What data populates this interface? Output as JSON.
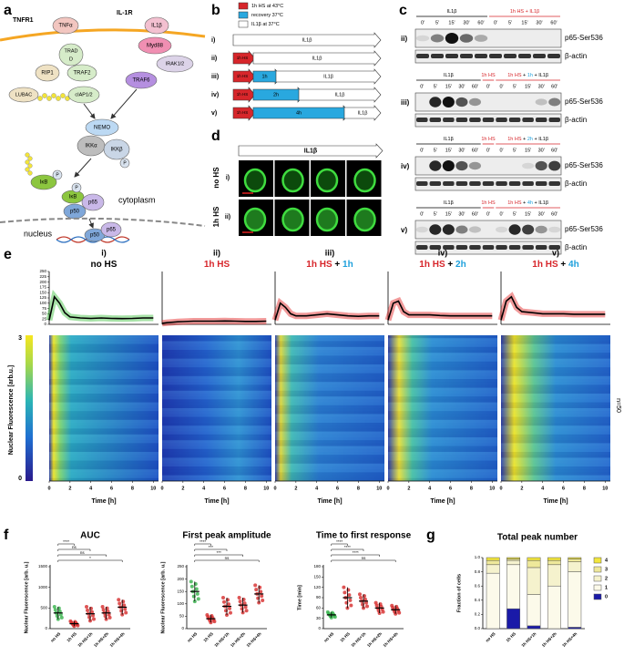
{
  "panel_a": {
    "letter": "a",
    "tnfr1": "TNFR1",
    "il1r": "IL-1R",
    "tnfa": "TNFα",
    "tradd": [
      "TRAD",
      "D"
    ],
    "rip1": "RIP1",
    "traf2": "TRAF2",
    "lubac": "LUBAC",
    "ciap": "cIAP1/2",
    "il1b": "IL1β",
    "myd88": "Myd88",
    "irak": "IRAK1/2",
    "traf6": "TRAF6",
    "nemo": "NEMO",
    "ikka": "IKKα",
    "ikkb": "IKKβ",
    "p": "P",
    "ikb": "IκB",
    "p65": "p65",
    "p50": "p50",
    "cytoplasm": "cytoplasm",
    "nucleus": "nucleus"
  },
  "panel_b": {
    "letter": "b",
    "legend": [
      {
        "text": "1h HS at 43°C",
        "color": "#d7262b"
      },
      {
        "text": "recovery 37°C",
        "color": "#29a8df"
      },
      {
        "text": "IL1β at 37°C",
        "color": "#ffffff"
      }
    ],
    "rows": [
      {
        "label": "i)",
        "steps": [
          "IL1β"
        ]
      },
      {
        "label": "ii)",
        "steps": [
          "1h HS",
          "IL1β"
        ]
      },
      {
        "label": "iii)",
        "steps": [
          "1h HS",
          "1h",
          "IL1β"
        ]
      },
      {
        "label": "iv)",
        "steps": [
          "1h HS",
          "2h",
          "IL1β"
        ]
      },
      {
        "label": "v)",
        "steps": [
          "1h HS",
          "4h",
          "IL1β"
        ]
      }
    ]
  },
  "panel_c": {
    "letter": "c",
    "protein": "p65-Ser536",
    "loading": "β-actin",
    "blots": [
      {
        "label": "ii)",
        "header": [
          [
            {
              "text": "IL1β"
            }
          ],
          [
            {
              "text": "1h HS + IL1β",
              "color": "#d7262b"
            }
          ]
        ],
        "times": [
          "0'",
          "5'",
          "15'",
          "30'",
          "60'",
          "0'",
          "5'",
          "15'",
          "30'",
          "60'"
        ],
        "p65_band": [
          0.1,
          0.5,
          1,
          0.6,
          0.3,
          0,
          0,
          0,
          0,
          0
        ]
      },
      {
        "label": "iii)",
        "header": [
          [
            {
              "text": "IL1β"
            }
          ],
          [
            {
              "text": "1h HS",
              "color": "#d7262b"
            }
          ],
          [
            {
              "text": "1h HS",
              "color": "#d7262b"
            },
            {
              "text": " + "
            },
            {
              "text": "1h",
              "color": "#1ea0dc"
            },
            {
              "text": " + IL1β"
            }
          ]
        ],
        "times": [
          "0'",
          "5'",
          "15'",
          "30'",
          "60'",
          "0'",
          "0'",
          "5'",
          "15'",
          "30'",
          "60'"
        ],
        "p65_band": [
          0,
          0.9,
          1,
          0.7,
          0.4,
          0,
          0,
          0,
          0,
          0.2,
          0.5
        ]
      },
      {
        "label": "iv)",
        "header": [
          [
            {
              "text": "IL1β"
            }
          ],
          [
            {
              "text": "1h HS",
              "color": "#d7262b"
            }
          ],
          [
            {
              "text": "1h HS",
              "color": "#d7262b"
            },
            {
              "text": " + "
            },
            {
              "text": "2h",
              "color": "#1ea0dc"
            },
            {
              "text": " + IL1β"
            }
          ]
        ],
        "times": [
          "0'",
          "5'",
          "15'",
          "30'",
          "60'",
          "0'",
          "0'",
          "5'",
          "15'",
          "30'",
          "60'"
        ],
        "p65_band": [
          0,
          0.9,
          1,
          0.7,
          0.4,
          0,
          0,
          0,
          0.1,
          0.7,
          0.8
        ]
      },
      {
        "label": "v)",
        "header": [
          [
            {
              "text": "IL1β"
            }
          ],
          [
            {
              "text": "1h HS",
              "color": "#d7262b"
            }
          ],
          [
            {
              "text": "1h HS",
              "color": "#d7262b"
            },
            {
              "text": " + "
            },
            {
              "text": "4h",
              "color": "#1ea0dc"
            },
            {
              "text": " + IL1β"
            }
          ]
        ],
        "times": [
          "0'",
          "5'",
          "15'",
          "30'",
          "60'",
          "0'",
          "0'",
          "5'",
          "15'",
          "30'",
          "60'"
        ],
        "p65_band": [
          0.1,
          0.9,
          0.9,
          0.5,
          0.2,
          0,
          0.1,
          0.9,
          0.8,
          0.4,
          0.1
        ]
      }
    ]
  },
  "panel_d": {
    "letter": "d",
    "stimulus": "IL1β",
    "rows": [
      {
        "label": "i)",
        "condition": "no HS",
        "color": "#000000"
      },
      {
        "label": "ii)",
        "condition": "1h HS",
        "color": "#d7262b"
      }
    ],
    "times": [
      "0'",
      "20'",
      "60'",
      "100'"
    ]
  },
  "panel_e": {
    "letter": "e",
    "ylabel": "Nuclear Fluorescence [arb.u.]",
    "xlabel": "Time [h]",
    "ylim": [
      0,
      250
    ],
    "yticks": [
      0,
      25,
      50,
      75,
      100,
      125,
      150,
      175,
      200,
      225,
      250
    ],
    "xlim": [
      0,
      10.5
    ],
    "xticks": [
      0,
      2,
      4,
      6,
      8,
      10
    ],
    "colorbar_ticks": [
      0,
      3
    ],
    "n_label": "n=50",
    "x": [
      0,
      0.5,
      1,
      1.5,
      2,
      3,
      4,
      5,
      6,
      7,
      8,
      9,
      10
    ],
    "panels": [
      {
        "numeral": "i)",
        "title": [
          {
            "text": "no HS"
          }
        ],
        "color": "#3cbf3c",
        "mean": [
          20,
          130,
          100,
          55,
          35,
          30,
          28,
          30,
          28,
          27,
          28,
          30,
          30
        ]
      },
      {
        "numeral": "ii)",
        "title": [
          {
            "text": "1h HS",
            "color": "#d7262b"
          }
        ],
        "color": "#e02020",
        "mean": [
          5,
          8,
          10,
          12,
          13,
          15,
          15,
          15,
          16,
          15,
          14,
          14,
          15
        ]
      },
      {
        "numeral": "iii)",
        "title": [
          {
            "text": "1h HS",
            "color": "#d7262b"
          },
          {
            "text": " + "
          },
          {
            "text": "1h",
            "color": "#1ea0dc"
          }
        ],
        "color": "#e02020",
        "mean": [
          20,
          100,
          80,
          50,
          40,
          40,
          45,
          50,
          45,
          40,
          38,
          40,
          40
        ]
      },
      {
        "numeral": "iv)",
        "title": [
          {
            "text": "1h HS",
            "color": "#d7262b"
          },
          {
            "text": " + "
          },
          {
            "text": "2h",
            "color": "#1ea0dc"
          }
        ],
        "color": "#e02020",
        "mean": [
          20,
          100,
          110,
          60,
          45,
          45,
          45,
          42,
          40,
          40,
          40,
          40,
          40
        ]
      },
      {
        "numeral": "v)",
        "title": [
          {
            "text": "1h HS",
            "color": "#d7262b"
          },
          {
            "text": " + "
          },
          {
            "text": "4h",
            "color": "#1ea0dc"
          }
        ],
        "color": "#e02020",
        "mean": [
          20,
          110,
          130,
          80,
          60,
          55,
          50,
          50,
          50,
          48,
          48,
          48,
          48
        ]
      }
    ]
  },
  "panel_f": {
    "letter": "f",
    "categories": [
      "no HS",
      "1h HS",
      "1h HS+1h",
      "1h HS+2h",
      "1h HS+4h"
    ],
    "colors": [
      "#34b34a",
      "#d62a2a",
      "#d62a2a",
      "#d62a2a",
      "#d62a2a"
    ],
    "plots": [
      {
        "title": "AUC",
        "ylabel": "Nuclear Fluorescence [arb. u.]",
        "ylim": [
          0,
          1500
        ],
        "yticks": [
          0,
          500,
          1000,
          1500
        ],
        "mean": [
          380,
          120,
          360,
          380,
          520
        ],
        "sd": [
          150,
          60,
          170,
          150,
          180
        ],
        "significance": [
          "****",
          "ns",
          "ns",
          "*"
        ]
      },
      {
        "title": "First peak amplitude",
        "ylabel": "Nuclear Fluorescence [arb. u.]",
        "ylim": [
          0,
          250
        ],
        "yticks": [
          0,
          50,
          100,
          150,
          200,
          250
        ],
        "mean": [
          150,
          40,
          90,
          95,
          140
        ],
        "sd": [
          40,
          15,
          35,
          30,
          35
        ],
        "significance": [
          "****",
          "***",
          "***",
          "ns"
        ]
      },
      {
        "title": "Time to first response",
        "ylabel": "Time [min]",
        "ylim": [
          0,
          180
        ],
        "yticks": [
          0,
          30,
          60,
          90,
          120,
          150,
          180
        ],
        "mean": [
          40,
          90,
          80,
          60,
          55
        ],
        "sd": [
          8,
          30,
          20,
          15,
          12
        ],
        "significance": [
          "****",
          "****",
          "****",
          "ns"
        ]
      }
    ]
  },
  "panel_g": {
    "letter": "g",
    "chart": {
      "type": "bar",
      "title": "Total peak number",
      "ylabel": "Fraction of cells",
      "categories": [
        "no HS",
        "1h HS",
        "1h HS+1h",
        "1h HS+2h",
        "1h HS+4h"
      ],
      "ylim": [
        0,
        1
      ],
      "yticks": [
        {
          "value": 0,
          "label": "0.0"
        },
        {
          "value": 0.2,
          "label": "0.2"
        },
        {
          "value": 0.4,
          "label": "0.4"
        },
        {
          "value": 0.6,
          "label": "0.6"
        },
        {
          "value": 0.8,
          "label": "0.8"
        },
        {
          "value": 1,
          "label": "1.0"
        }
      ],
      "series": [
        {
          "name": "4",
          "color": "#f2e63c",
          "values": [
            0.04,
            0.02,
            0.04,
            0.04,
            0.02
          ]
        },
        {
          "name": "3",
          "color": "#eee89a",
          "values": [
            0.06,
            0.02,
            0.1,
            0.06,
            0.04
          ]
        },
        {
          "name": "2",
          "color": "#f5f2cd",
          "values": [
            0.12,
            0.06,
            0.38,
            0.3,
            0.14
          ]
        },
        {
          "name": "1",
          "color": "#fcfaea",
          "values": [
            0.78,
            0.62,
            0.44,
            0.6,
            0.78
          ]
        },
        {
          "name": "0",
          "color": "#1a1aa8",
          "values": [
            0,
            0.28,
            0.04,
            0,
            0.02
          ]
        }
      ]
    }
  }
}
